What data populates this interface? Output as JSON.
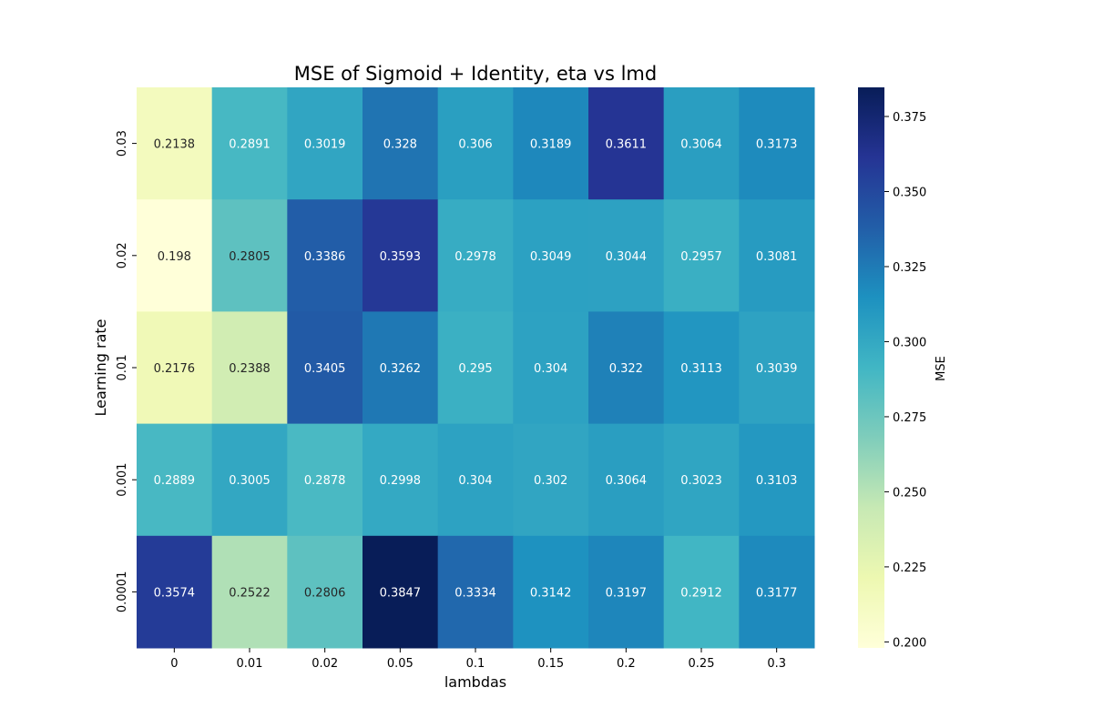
{
  "chart_data": {
    "type": "heatmap",
    "title": "MSE of Sigmoid + Identity, eta vs lmd",
    "xlabel": "lambdas",
    "ylabel": "Learning rate",
    "x_categories": [
      "0",
      "0.01",
      "0.02",
      "0.05",
      "0.1",
      "0.15",
      "0.2",
      "0.25",
      "0.3"
    ],
    "y_categories": [
      "0.03",
      "0.02",
      "0.01",
      "0.001",
      "0.0001"
    ],
    "values": [
      [
        0.2138,
        0.2891,
        0.3019,
        0.328,
        0.306,
        0.3189,
        0.3611,
        0.3064,
        0.3173
      ],
      [
        0.198,
        0.2805,
        0.3386,
        0.3593,
        0.2978,
        0.3049,
        0.3044,
        0.2957,
        0.3081
      ],
      [
        0.2176,
        0.2388,
        0.3405,
        0.3262,
        0.295,
        0.304,
        0.322,
        0.3113,
        0.3039
      ],
      [
        0.2889,
        0.3005,
        0.2878,
        0.2998,
        0.304,
        0.302,
        0.3064,
        0.3023,
        0.3103
      ],
      [
        0.3574,
        0.2522,
        0.2806,
        0.3847,
        0.3334,
        0.3142,
        0.3197,
        0.2912,
        0.3177
      ]
    ],
    "colorbar": {
      "label": "MSE",
      "range": [
        0.198,
        0.3847
      ],
      "ticks": [
        "0.200",
        "0.225",
        "0.250",
        "0.275",
        "0.300",
        "0.325",
        "0.350",
        "0.375"
      ],
      "colormap": "YlGnBu"
    }
  }
}
